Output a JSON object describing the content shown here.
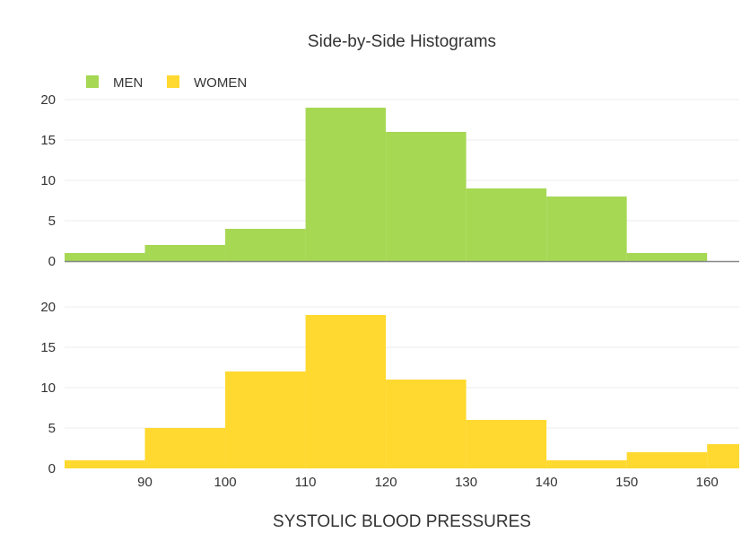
{
  "chart_data": {
    "type": "bar",
    "title": "Side-by-Side Histograms",
    "xlabel": "SYSTOLIC BLOOD PRESSURES",
    "ylabel": "",
    "legend_position": "top-left",
    "bin_edges": [
      80,
      90,
      100,
      110,
      120,
      130,
      140,
      150,
      160,
      170
    ],
    "xlim": [
      80,
      164
    ],
    "x_ticks": [
      90,
      100,
      110,
      120,
      130,
      140,
      150,
      160
    ],
    "ylim": [
      0,
      21
    ],
    "y_ticks": [
      0,
      5,
      10,
      15,
      20
    ],
    "grid": true,
    "series": [
      {
        "name": "MEN",
        "color": "#a6d854",
        "values": [
          1,
          2,
          4,
          19,
          16,
          9,
          8,
          1,
          0
        ]
      },
      {
        "name": "WOMEN",
        "color": "#ffd92f",
        "values": [
          1,
          5,
          12,
          19,
          11,
          6,
          1,
          2,
          3
        ]
      }
    ]
  }
}
